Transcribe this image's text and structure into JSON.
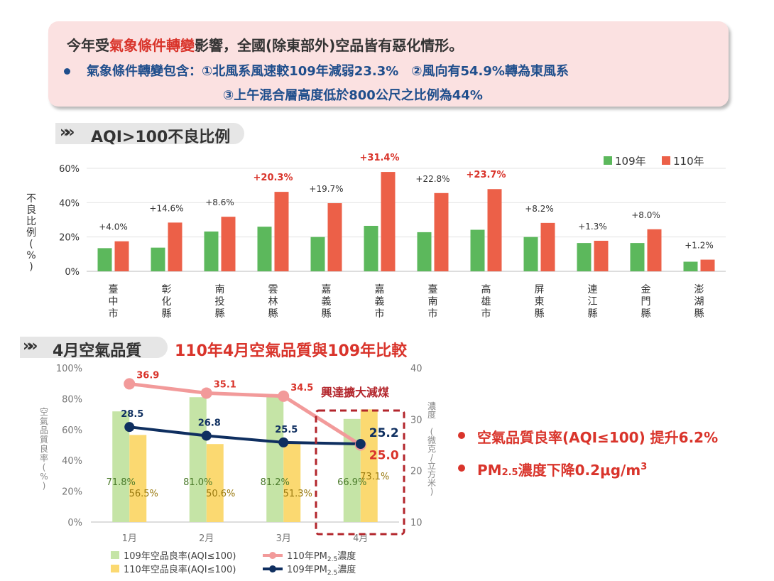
{
  "banner": {
    "title_a": "今年受",
    "title_hl": "氣象條件轉變",
    "title_b": "影響，全國(除東部外)空品皆有惡化情形。",
    "line1": "氣象條件轉變包含：①北風系風速較109年減弱23.3%　②風向有54.9%轉為東風系",
    "line2": "③上午混合層高度低於800公尺之比例為44%",
    "colors": {
      "background": "#fbe1e1",
      "highlight": "#d9342b",
      "blue": "#1f4e8c"
    }
  },
  "section1": {
    "chevrons": "»»",
    "title": "AQI>100不良比例"
  },
  "section2": {
    "chevrons": "»»",
    "title": "4月空氣品質",
    "subtitle": "110年4月空氣品質與109年比較"
  },
  "right_notes": {
    "item1": "空氣品質良率(AQI≤100) 提升6.2%",
    "item2_pre": "PM",
    "item2_sub": "2.5",
    "item2_mid": "濃度下降0.2μg/m",
    "item2_sup": "3"
  },
  "chart_data": [
    {
      "type": "bar",
      "ylabel": "不良比例(%)",
      "ylim": [
        0,
        60
      ],
      "yticks": [
        "0%",
        "20%",
        "40%",
        "60%"
      ],
      "grid": true,
      "legend_position": "top-right",
      "categories": [
        "臺中市",
        "彰化縣",
        "南投縣",
        "雲林縣",
        "嘉義縣",
        "嘉義市",
        "臺南市",
        "高雄市",
        "屏東縣",
        "連江縣",
        "金門縣",
        "澎湖縣"
      ],
      "series": [
        {
          "name": "109年",
          "color": "#5cb85c",
          "values": [
            13.5,
            13.8,
            23.2,
            26,
            20,
            26.5,
            22.8,
            24.2,
            20,
            16.5,
            16.5,
            5.6
          ]
        },
        {
          "name": "110年",
          "color": "#ec6048",
          "values": [
            17.5,
            28.4,
            31.8,
            46.3,
            39.7,
            57.9,
            45.6,
            47.9,
            28.2,
            17.8,
            24.5,
            6.8
          ]
        }
      ],
      "annotations": [
        "+4.0%",
        "+14.6%",
        "+8.6%",
        "+20.3%",
        "+19.7%",
        "+31.4%",
        "+22.8%",
        "+23.7%",
        "+8.2%",
        "+1.3%",
        "+8.0%",
        "+1.2%"
      ],
      "annotation_highlight": [
        false,
        false,
        false,
        true,
        false,
        true,
        false,
        true,
        false,
        false,
        false,
        false
      ]
    },
    {
      "type": "bar",
      "categories": [
        "1月",
        "2月",
        "3月",
        "4月"
      ],
      "ylabel": "空氣品質良率(%)",
      "ylim": [
        0,
        100
      ],
      "yticks": [
        "0%",
        "20%",
        "40%",
        "60%",
        "80%",
        "100%"
      ],
      "y2label": "濃度 (微克/立方米)",
      "y2lim": [
        10,
        40
      ],
      "y2ticks": [
        "10",
        "20",
        "30",
        "40"
      ],
      "series": [
        {
          "name": "109年空品良率(AQI≤100)",
          "color": "#c5e4a6",
          "values": [
            71.8,
            81.0,
            81.2,
            66.9
          ],
          "labels": [
            "71.8%",
            "81.0%",
            "81.2%",
            "66.9%"
          ]
        },
        {
          "name": "110年空品良率(AQI≤100)",
          "color": "#fbd971",
          "values": [
            56.5,
            50.6,
            51.3,
            73.1
          ],
          "labels": [
            "56.5%",
            "50.6%",
            "51.3%",
            "73.1%"
          ]
        },
        {
          "name": "110年PM2.5濃度",
          "type": "line",
          "axis": "right",
          "color": "#f29a9a",
          "values": [
            36.9,
            35.1,
            34.5,
            25.0
          ],
          "labels": [
            "36.9",
            "35.1",
            "34.5",
            "25.0"
          ]
        },
        {
          "name": "109年PM2.5濃度",
          "type": "line",
          "axis": "right",
          "color": "#0f2f60",
          "values": [
            28.5,
            26.8,
            25.5,
            25.2
          ],
          "labels": [
            "28.5",
            "26.8",
            "25.5",
            "25.2"
          ]
        }
      ],
      "highlight_box": "興達擴大減煤",
      "legend": {
        "bar109": "109年空品良率(AQI≤100)",
        "bar110": "110年空品良率(AQI≤100)",
        "line110_pre": "110年PM",
        "line110_sub": "2.5",
        "line110_post": "濃度",
        "line109_pre": "109年PM",
        "line109_sub": "2.5",
        "line109_post": "濃度"
      }
    }
  ]
}
